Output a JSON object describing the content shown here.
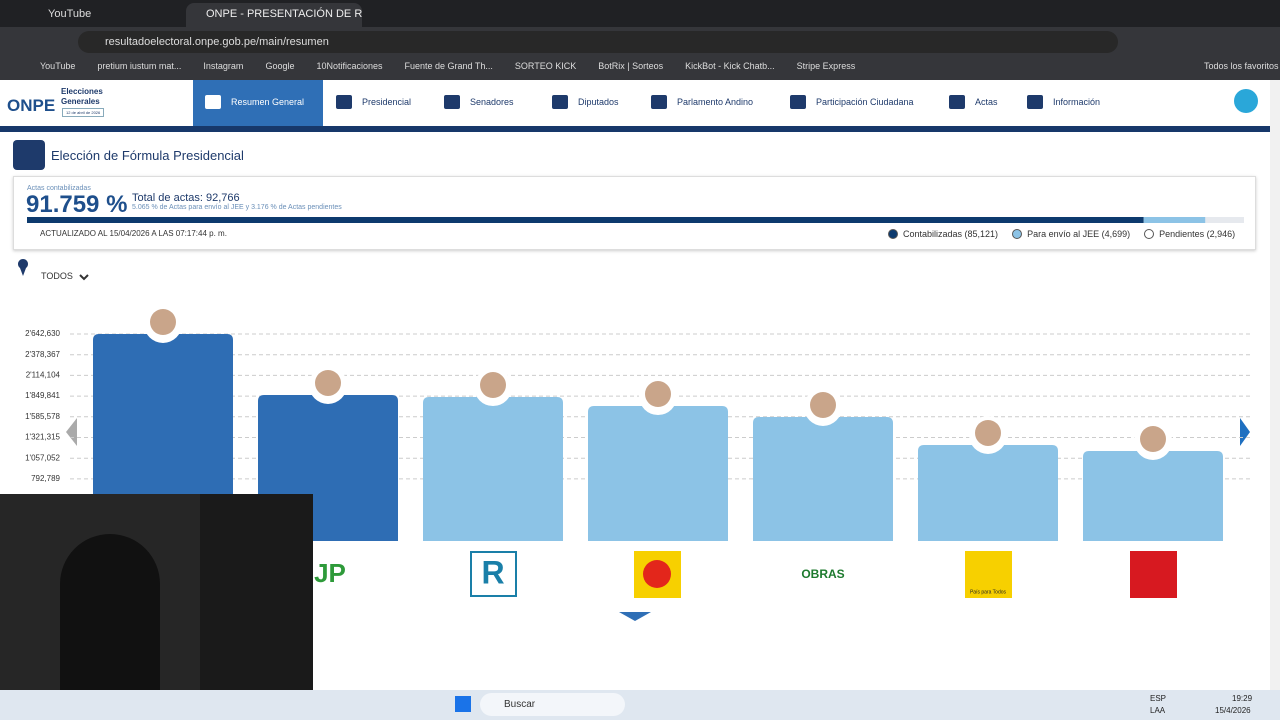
{
  "browser": {
    "tabs": [
      "YouTube",
      "ONPE - PRESENTACIÓN DE RES"
    ],
    "url": "resultadoelectoral.onpe.gob.pe/main/resumen",
    "bookmarks": [
      "YouTube",
      "pretium iustum mat...",
      "Instagram",
      "Google",
      "10Notificaciones",
      "Fuente de Grand Th...",
      "SORTEO KICK",
      "BotRix | Sorteos",
      "KickBot - Kick Chatb...",
      "Stripe Express"
    ],
    "all_bookmarks": "Todos los favoritos"
  },
  "header": {
    "logo": "ONPE",
    "event": "Elecciones Generales",
    "date": "12 de abril de 2026",
    "nav": [
      "Resumen General",
      "Presidencial",
      "Senadores",
      "Diputados",
      "Parlamento Andino",
      "Participación Ciudadana",
      "Actas",
      "Información"
    ]
  },
  "section_title": "Elección de Fórmula Presidencial",
  "summary": {
    "label": "Actas contabilizadas",
    "percent": "91.759 %",
    "total": "Total de actas: 92,766",
    "note": "5.065 % de Actas para envío al JEE y 3.176 % de Actas pendientes",
    "updated": "ACTUALIZADO AL 15/04/2026 A LAS 07:17:44 p. m.",
    "progress": {
      "values": [
        91.759,
        5.065,
        3.176
      ],
      "colors": [
        "#0d3a6e",
        "#8cc3e6",
        "#e6e9ee"
      ]
    },
    "legend": [
      "Contabilizadas (85,121)",
      "Para envío al JEE (4,699)",
      "Pendientes (2,946)"
    ]
  },
  "filter": "TODOS",
  "chart_data": {
    "type": "bar",
    "categories": [
      null,
      null,
      null,
      null,
      null,
      null,
      null
    ],
    "values": [
      2642630,
      1864000,
      1838000,
      1723000,
      1583000,
      1226000,
      1149000
    ],
    "colors": [
      "#2e6db4",
      "#2e6db4",
      "#8cc3e6",
      "#8cc3e6",
      "#8cc3e6",
      "#8cc3e6",
      "#8cc3e6"
    ],
    "ylim": [
      0,
      2642630
    ],
    "grid": true,
    "yticks": [
      {
        "value": 2642630,
        "label": "2'642,630"
      },
      {
        "value": 2378367,
        "label": "2'378,367"
      },
      {
        "value": 2114104,
        "label": "2'114,104"
      },
      {
        "value": 1849841,
        "label": "1'849,841"
      },
      {
        "value": 1585578,
        "label": "1'585,578"
      },
      {
        "value": 1321315,
        "label": "1'321,315"
      },
      {
        "value": 1057052,
        "label": "1'057,052"
      },
      {
        "value": 792789,
        "label": "792,789"
      }
    ]
  },
  "logos": {
    "jp": "JP",
    "r": "R",
    "obras": "OBRAS",
    "pais": "País para Todos"
  },
  "taskbar": {
    "search": "Buscar",
    "lang": "ESP",
    "layout": "LAA",
    "time": "19:29",
    "date": "15/4/2026"
  }
}
